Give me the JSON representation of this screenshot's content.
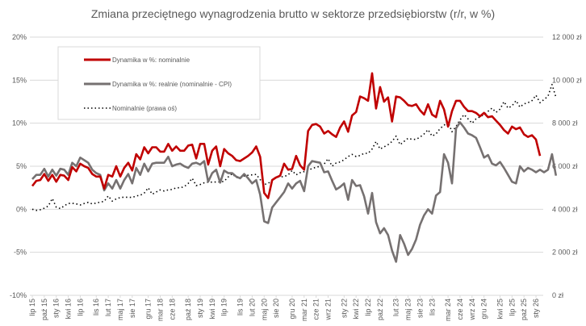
{
  "chart_data": {
    "type": "line",
    "title": "Zmiana przeciętnego wynagrodzenia brutto w sektorze przedsiębiorstw (r/r, w %)",
    "xlabel": "",
    "ylabel": "",
    "ylim": [
      -10,
      20
    ],
    "y2lim": [
      0,
      12000
    ],
    "grid": true,
    "legend_position": "top-left",
    "y_ticks": [
      "20%",
      "15%",
      "10%",
      "5%",
      "0%",
      "-5%",
      "-10%"
    ],
    "y_tick_values": [
      20,
      15,
      10,
      5,
      0,
      -5,
      -10
    ],
    "y2_ticks": [
      "12 000 zł",
      "10 000 zł",
      "8 000 zł",
      "6 000 zł",
      "4 000 zł",
      "2 000 zł",
      "0 zł"
    ],
    "y2_tick_values": [
      12000,
      10000,
      8000,
      6000,
      4000,
      2000,
      0
    ],
    "x_start": "2015-07",
    "x_tick_labels": [
      {
        "label": "lip 15",
        "month_index": 0
      },
      {
        "label": "paź 15",
        "month_index": 3
      },
      {
        "label": "sty 16",
        "month_index": 6
      },
      {
        "label": "kwi 16",
        "month_index": 9
      },
      {
        "label": "lip 16",
        "month_index": 12
      },
      {
        "label": "lis 16",
        "month_index": 16
      },
      {
        "label": "lut 17",
        "month_index": 19
      },
      {
        "label": "maj 17",
        "month_index": 22
      },
      {
        "label": "sie 17",
        "month_index": 25
      },
      {
        "label": "gru 17",
        "month_index": 29
      },
      {
        "label": "mar 18",
        "month_index": 32
      },
      {
        "label": "cze 18",
        "month_index": 35
      },
      {
        "label": "paź 18",
        "month_index": 39
      },
      {
        "label": "sty 19",
        "month_index": 42
      },
      {
        "label": "kwi 19",
        "month_index": 45
      },
      {
        "label": "lip 19",
        "month_index": 48
      },
      {
        "label": "lis 19",
        "month_index": 52
      },
      {
        "label": "lut 20",
        "month_index": 55
      },
      {
        "label": "maj 20",
        "month_index": 58
      },
      {
        "label": "sie 20",
        "month_index": 61
      },
      {
        "label": "gru 20",
        "month_index": 65
      },
      {
        "label": "mar 21",
        "month_index": 68
      },
      {
        "label": "cze 21",
        "month_index": 71
      },
      {
        "label": "wrz 21",
        "month_index": 74
      },
      {
        "label": "sty 22",
        "month_index": 78
      },
      {
        "label": "kwi 22",
        "month_index": 81
      },
      {
        "label": "lip 22",
        "month_index": 84
      },
      {
        "label": "paź 22",
        "month_index": 87
      },
      {
        "label": "lut 23",
        "month_index": 91
      },
      {
        "label": "maj 23",
        "month_index": 94
      },
      {
        "label": "sie 23",
        "month_index": 97
      },
      {
        "label": "lis 23",
        "month_index": 100
      },
      {
        "label": "mar 24",
        "month_index": 104
      },
      {
        "label": "cze 24",
        "month_index": 107
      },
      {
        "label": "wrz 24",
        "month_index": 110
      },
      {
        "label": "gru 24",
        "month_index": 113
      },
      {
        "label": "kwi 25",
        "month_index": 117
      },
      {
        "label": "lip 25",
        "month_index": 120
      },
      {
        "label": "paź 25",
        "month_index": 123
      },
      {
        "label": "sty 26",
        "month_index": 126
      }
    ],
    "series": [
      {
        "name": "Dynamika w %: nominalnie",
        "axis": "left",
        "color": "#C00000",
        "style": "solid",
        "values": [
          2.7,
          3.3,
          3.4,
          4.1,
          3.3,
          4.0,
          3.2,
          4.0,
          3.9,
          3.4,
          4.9,
          4.4,
          5.3,
          5.0,
          4.8,
          4.1,
          3.8,
          3.8,
          2.4,
          4.0,
          3.8,
          5.0,
          3.8,
          4.8,
          5.4,
          4.5,
          6.4,
          5.8,
          7.2,
          6.5,
          7.2,
          7.2,
          6.7,
          6.7,
          7.6,
          6.8,
          7.3,
          6.8,
          6.8,
          7.4,
          7.5,
          5.9,
          7.6,
          7.6,
          5.2,
          6.8,
          7.3,
          5.0,
          7.0,
          6.5,
          6.2,
          5.7,
          5.6,
          5.9,
          6.2,
          6.6,
          7.3,
          6.1,
          1.9,
          1.3,
          3.4,
          3.7,
          3.9,
          5.3,
          4.6,
          4.7,
          6.2,
          5.1,
          4.6,
          9.1,
          9.8,
          9.9,
          9.6,
          8.8,
          9.1,
          8.7,
          8.4,
          9.5,
          10.2,
          9.0,
          10.9,
          11.3,
          13.1,
          12.9,
          12.6,
          15.8,
          11.7,
          14.2,
          12.5,
          13.0,
          10.2,
          13.1,
          13.0,
          12.6,
          12.1,
          12.0,
          12.2,
          11.5,
          11.0,
          12.2,
          11.0,
          10.7,
          12.6,
          11.6,
          9.6,
          11.4,
          12.6,
          12.6,
          11.9,
          11.4,
          11.4,
          11.2,
          10.8,
          11.2,
          10.7,
          10.8,
          10.3,
          9.8,
          9.2,
          8.8,
          9.6,
          9.3,
          9.5,
          8.7,
          8.4,
          8.6,
          8.1,
          6.2
        ]
      },
      {
        "name": "Dynamika w %: realnie (nominalnie - CPI)",
        "axis": "left",
        "color": "#767171",
        "style": "solid",
        "values": [
          3.5,
          4.0,
          4.0,
          4.7,
          3.8,
          4.6,
          3.9,
          4.7,
          4.6,
          4.0,
          5.4,
          5.0,
          6.0,
          5.7,
          5.4,
          4.6,
          4.2,
          4.0,
          2.2,
          3.0,
          2.4,
          3.4,
          2.4,
          3.4,
          4.1,
          3.0,
          4.8,
          4.0,
          5.3,
          4.4,
          5.3,
          5.4,
          5.4,
          5.4,
          6.1,
          5.0,
          5.2,
          5.3,
          5.0,
          4.8,
          5.3,
          5.4,
          5.2,
          5.6,
          3.2,
          4.2,
          4.6,
          3.1,
          4.5,
          4.2,
          4.2,
          3.8,
          3.6,
          4.1,
          3.6,
          3.0,
          3.4,
          1.7,
          -1.4,
          -1.6,
          0.2,
          0.8,
          1.4,
          2.0,
          3.0,
          2.4,
          3.0,
          3.3,
          2.1,
          5.0,
          5.6,
          5.5,
          5.4,
          4.3,
          4.4,
          3.3,
          2.3,
          2.6,
          3.0,
          1.1,
          3.4,
          2.7,
          2.8,
          1.5,
          -0.5,
          1.9,
          -1.5,
          -2.8,
          -2.2,
          -3.0,
          -4.8,
          -6.1,
          -3.0,
          -4.0,
          -5.3,
          -4.6,
          -3.5,
          -1.8,
          -0.7,
          0.0,
          -0.5,
          1.6,
          2.0,
          6.4,
          5.4,
          3.0,
          9.4,
          10.1,
          9.5,
          8.8,
          8.6,
          8.3,
          7.2,
          6.0,
          6.3,
          5.3,
          5.1,
          5.5,
          4.8,
          4.0,
          3.2,
          3.0,
          5.0,
          4.4,
          4.8,
          4.6,
          4.3,
          4.6,
          4.3,
          4.6,
          6.4,
          3.9
        ]
      },
      {
        "name": "Nominalnie (prawa oś)",
        "axis": "right",
        "color": "#000000",
        "style": "dotted",
        "values": [
          4000,
          3950,
          3980,
          4050,
          4150,
          4500,
          4100,
          4030,
          4160,
          4270,
          4280,
          4250,
          4200,
          4270,
          4320,
          4250,
          4290,
          4330,
          4370,
          4620,
          4380,
          4480,
          4550,
          4560,
          4560,
          4550,
          4620,
          4650,
          4750,
          5000,
          4700,
          4800,
          4900,
          4850,
          4900,
          4920,
          5000,
          5000,
          5050,
          5200,
          5440,
          5100,
          5150,
          5230,
          5260,
          5260,
          5270,
          5270,
          5300,
          5500,
          5650,
          5480,
          5450,
          5550,
          5580,
          5600,
          5620,
          5380,
          5150,
          5200,
          5350,
          5500,
          5500,
          5520,
          5600,
          5800,
          5600,
          5700,
          5750,
          5800,
          5900,
          5950,
          6000,
          6100,
          6350,
          6000,
          6150,
          6200,
          6300,
          6450,
          6550,
          6450,
          6500,
          6600,
          6600,
          6800,
          7150,
          6800,
          6900,
          7000,
          7150,
          7400,
          7000,
          7150,
          7300,
          7250,
          7250,
          7350,
          7500,
          7700,
          7400,
          7500,
          7750,
          7900,
          8050,
          7600,
          7850,
          8150,
          8400,
          8200,
          8000,
          8200,
          8300,
          8400,
          8550,
          8700,
          8500,
          8650,
          9000,
          8700,
          8800,
          9050,
          8750,
          8900,
          8950,
          9050,
          9300,
          8950,
          9100,
          9250,
          9800,
          9200
        ]
      }
    ]
  }
}
